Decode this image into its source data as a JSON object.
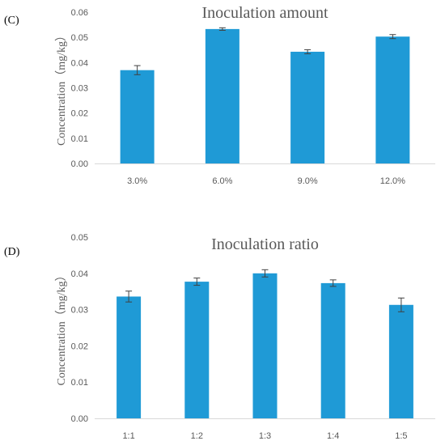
{
  "panels": [
    {
      "letter": "(C)",
      "chart_data": {
        "type": "bar",
        "title": "Inoculation amount",
        "xlabel": "",
        "ylabel": "Concentration（mg/kg）",
        "categories": [
          "3.0%",
          "6.0%",
          "9.0%",
          "12.0%"
        ],
        "values": [
          0.037,
          0.0533,
          0.0443,
          0.0503
        ],
        "errors": [
          0.0018,
          0.0005,
          0.0008,
          0.0008
        ],
        "ylim": [
          0,
          0.06
        ],
        "yticks": [
          0,
          0.01,
          0.02,
          0.03,
          0.04,
          0.05,
          0.06
        ],
        "ytick_labels": [
          "0.00",
          "0.01",
          "0.02",
          "0.03",
          "0.04",
          "0.05",
          "0.06"
        ],
        "color": "#1f9ad6",
        "grid": false,
        "legend": "none"
      }
    },
    {
      "letter": "(D)",
      "chart_data": {
        "type": "bar",
        "title": "Inoculation ratio",
        "xlabel": "",
        "ylabel": "Concentration（mg/kg）",
        "categories": [
          "1:1",
          "1:2",
          "1:3",
          "1:4",
          "1:5"
        ],
        "values": [
          0.0336,
          0.0377,
          0.04,
          0.0373,
          0.0313
        ],
        "errors": [
          0.0015,
          0.001,
          0.001,
          0.0009,
          0.0019
        ],
        "ylim": [
          0,
          0.05
        ],
        "yticks": [
          0,
          0.01,
          0.02,
          0.03,
          0.04,
          0.05
        ],
        "ytick_labels": [
          "0.00",
          "0.01",
          "0.02",
          "0.03",
          "0.04",
          "0.05"
        ],
        "color": "#1f9ad6",
        "grid": false,
        "legend": "none"
      }
    }
  ]
}
